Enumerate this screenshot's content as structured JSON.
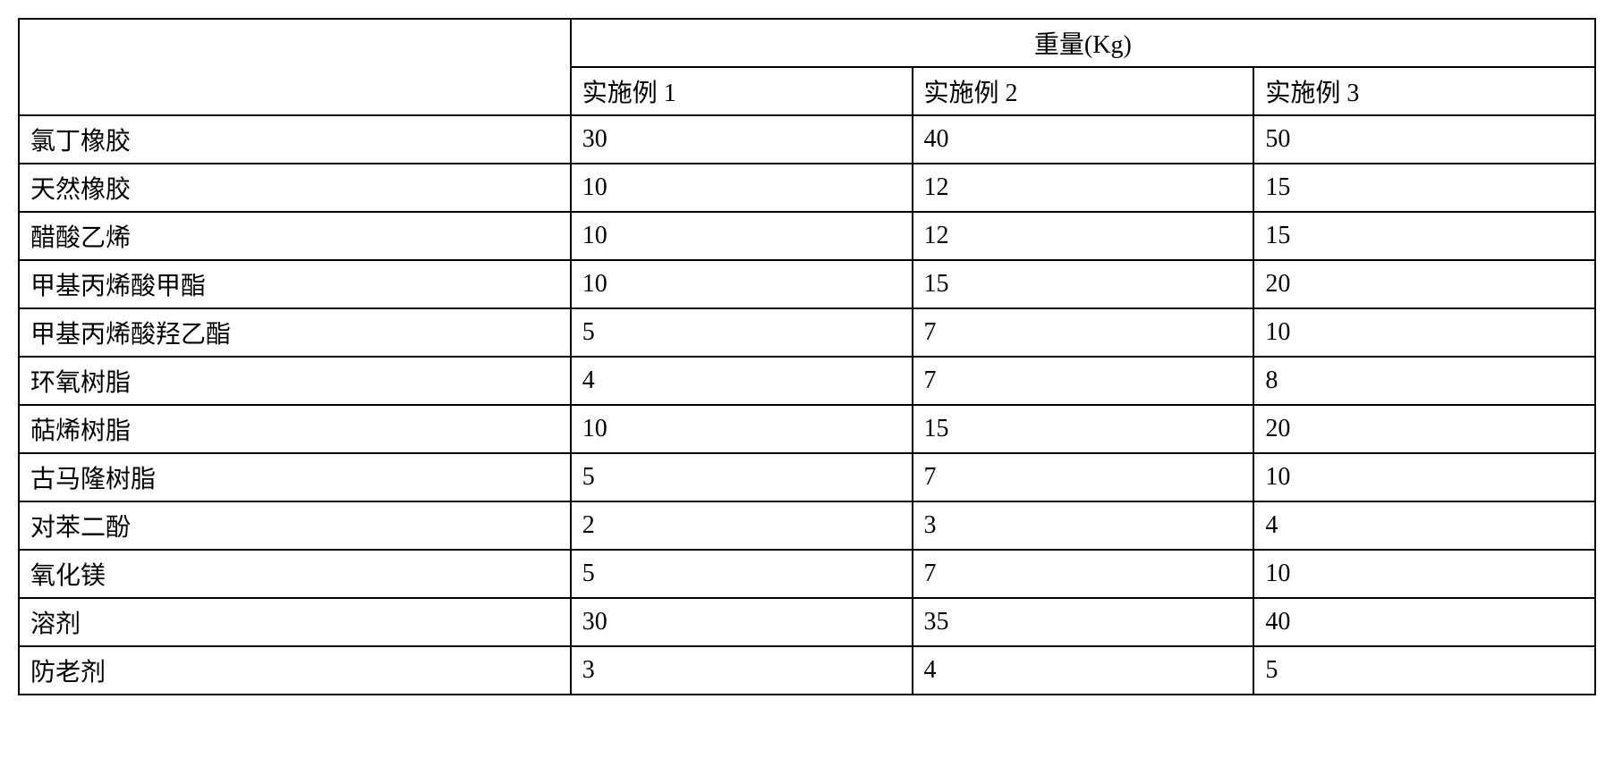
{
  "table": {
    "type": "table",
    "header": {
      "blank": "",
      "weight_label": "重量(Kg)",
      "example1": "实施例 1",
      "example2": "实施例 2",
      "example3": "实施例 3"
    },
    "rows": [
      {
        "label": "氯丁橡胶",
        "v1": "30",
        "v2": "40",
        "v3": "50"
      },
      {
        "label": "天然橡胶",
        "v1": "10",
        "v2": "12",
        "v3": "15"
      },
      {
        "label": "醋酸乙烯",
        "v1": "10",
        "v2": "12",
        "v3": "15"
      },
      {
        "label": "甲基丙烯酸甲酯",
        "v1": "10",
        "v2": "15",
        "v3": "20"
      },
      {
        "label": "甲基丙烯酸羟乙酯",
        "v1": "5",
        "v2": "7",
        "v3": "10"
      },
      {
        "label": "环氧树脂",
        "v1": "4",
        "v2": "7",
        "v3": "8"
      },
      {
        "label": "萜烯树脂",
        "v1": "10",
        "v2": "15",
        "v3": "20"
      },
      {
        "label": "古马隆树脂",
        "v1": "5",
        "v2": "7",
        "v3": "10"
      },
      {
        "label": "对苯二酚",
        "v1": "2",
        "v2": "3",
        "v3": "4"
      },
      {
        "label": "氧化镁",
        "v1": "5",
        "v2": "7",
        "v3": "10"
      },
      {
        "label": "溶剂",
        "v1": "30",
        "v2": "35",
        "v3": "40"
      },
      {
        "label": "防老剂",
        "v1": "3",
        "v2": "4",
        "v3": "5"
      }
    ],
    "styling": {
      "border_color": "#000000",
      "border_width": 2,
      "background_color": "#ffffff",
      "text_color": "#000000",
      "font_family": "SimSun",
      "font_size": 28,
      "cell_padding": "6px 12px",
      "label_column_width_pct": 35,
      "data_column_width_pct": 21.67
    }
  }
}
